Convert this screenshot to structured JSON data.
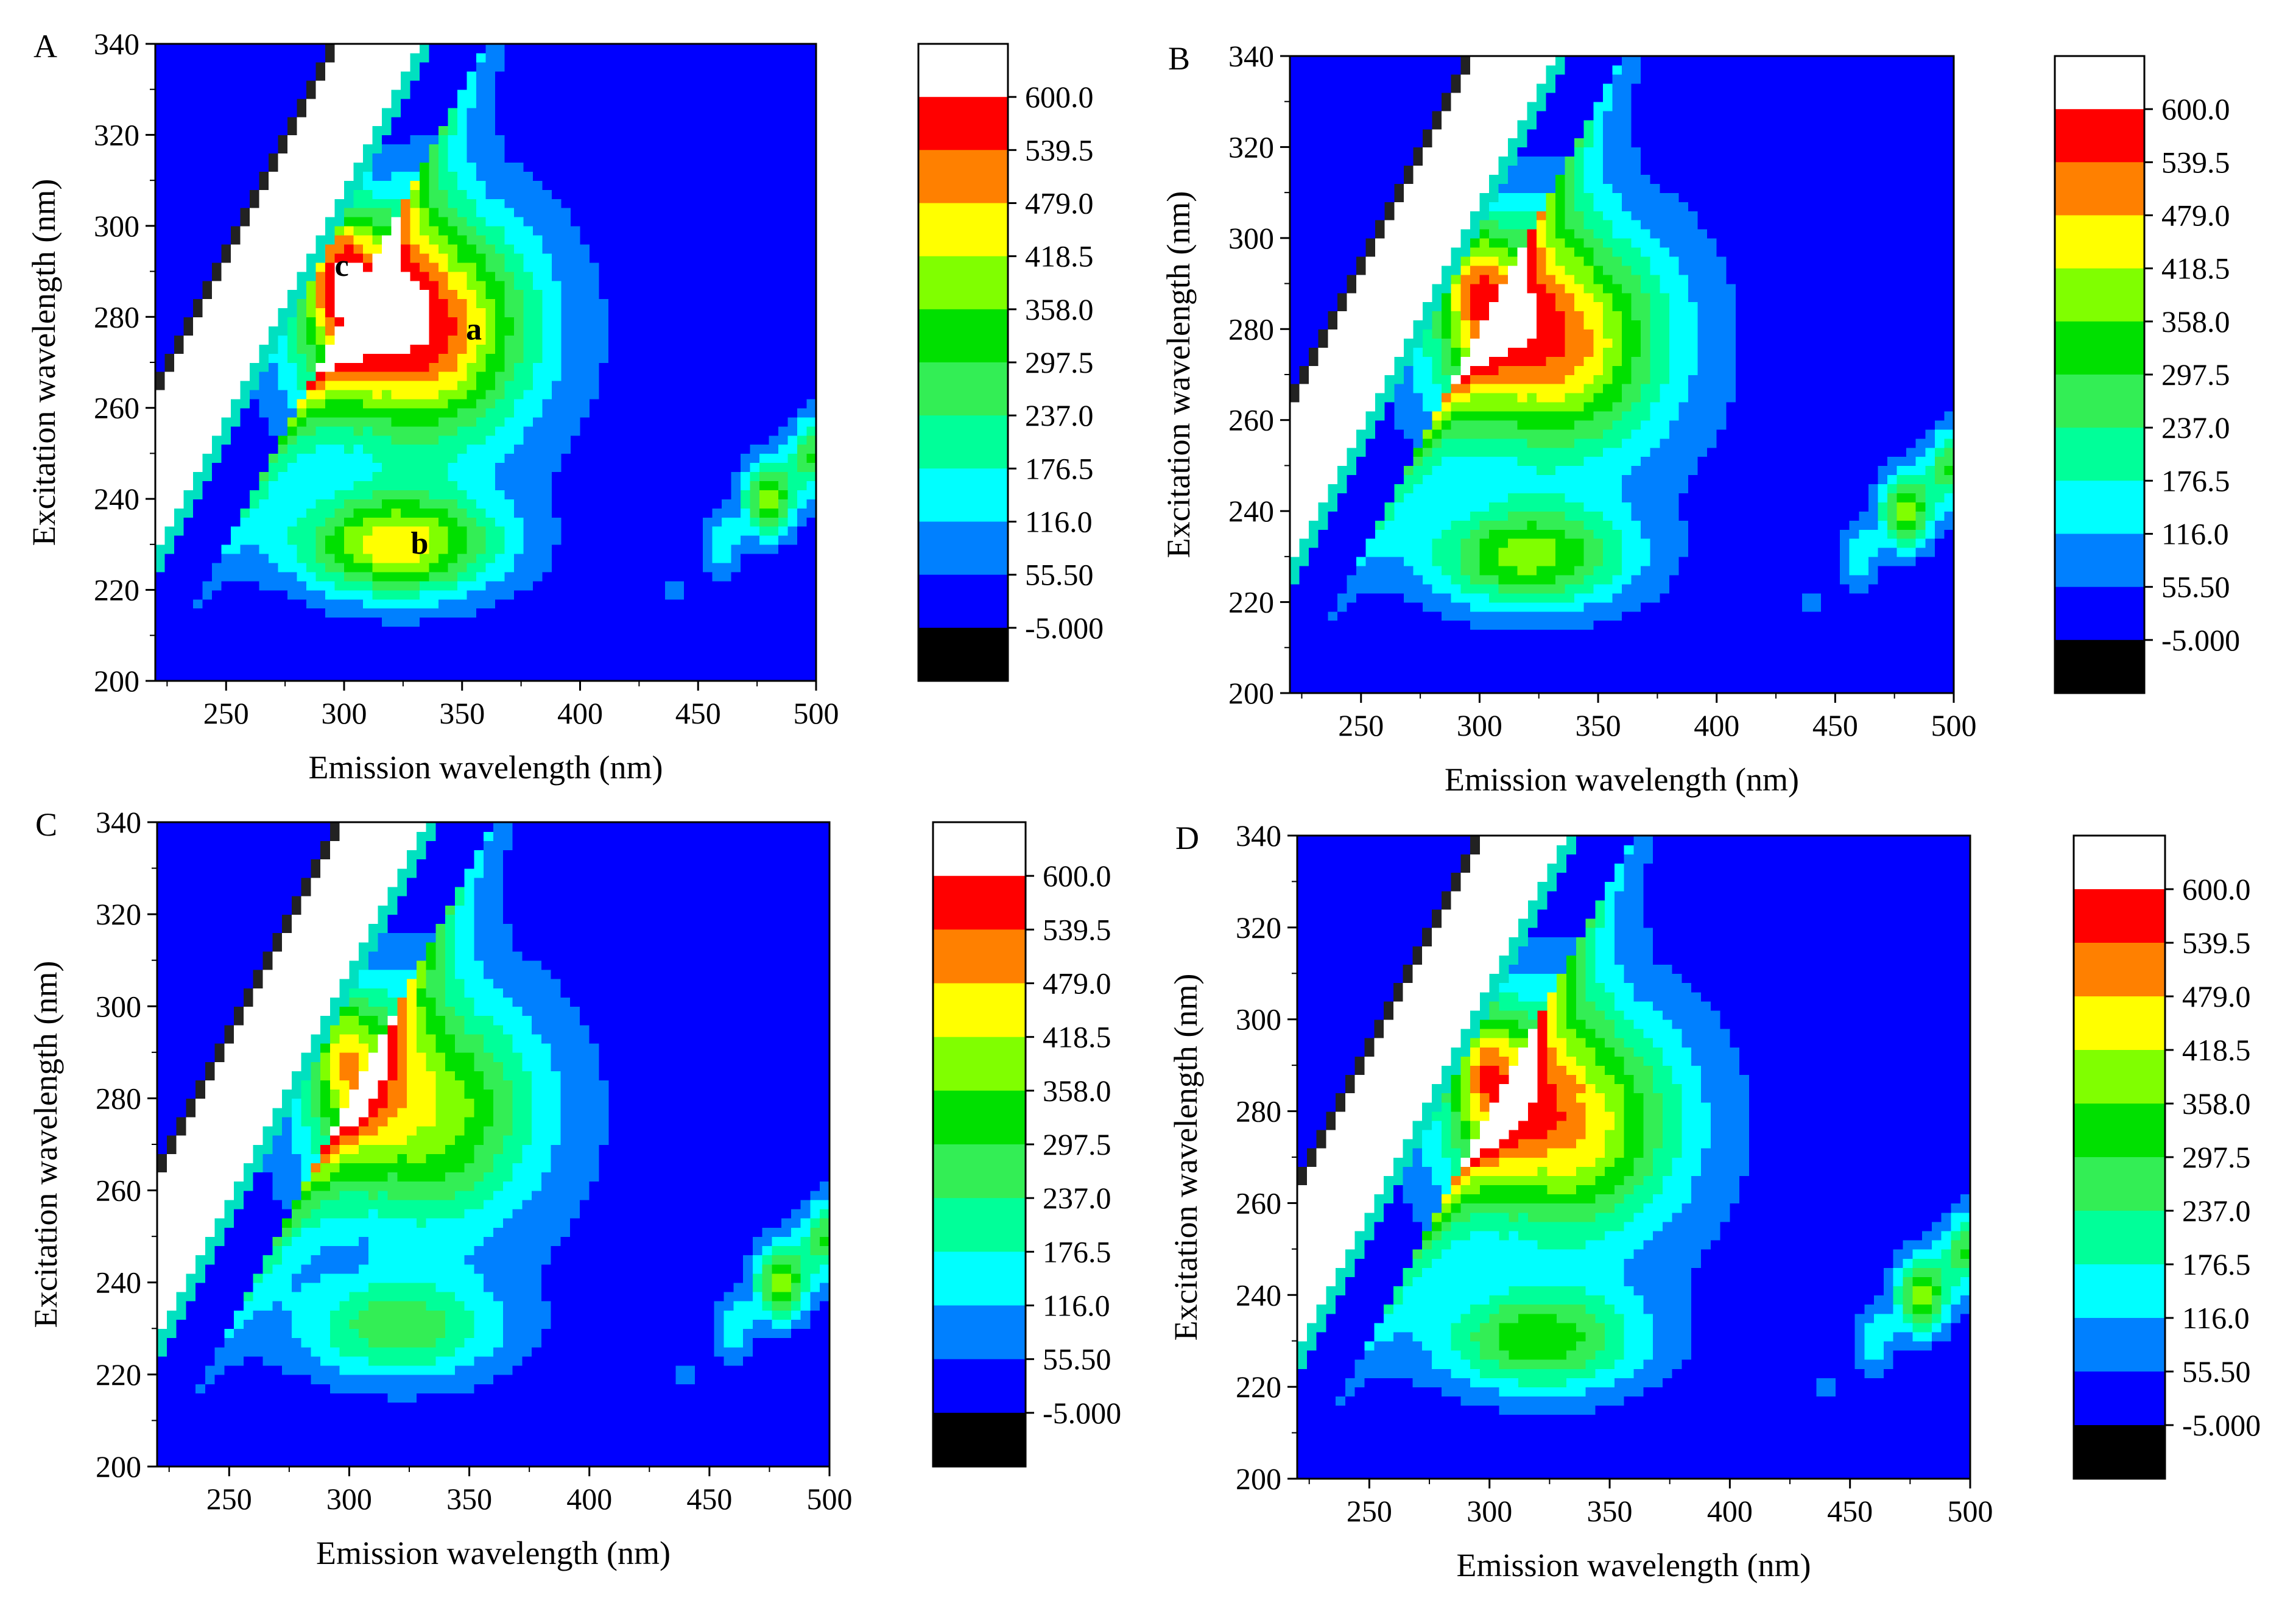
{
  "chart_data": [
    {
      "type": "heatmap",
      "panel_label": "A",
      "xlabel": "Emission wavelength (nm)",
      "ylabel": "Excitation wavelength (nm)",
      "xlim": [
        220,
        500
      ],
      "ylim": [
        200,
        340
      ],
      "x_ticks": [
        "250",
        "300",
        "350",
        "400",
        "450",
        "500"
      ],
      "y_ticks": [
        "200",
        "220",
        "240",
        "260",
        "280",
        "300",
        "320",
        "340"
      ],
      "peak_labels": [
        {
          "text": "a",
          "x": 355,
          "y": 275
        },
        {
          "text": "b",
          "x": 332,
          "y": 228
        },
        {
          "text": "c",
          "x": 299,
          "y": 289
        }
      ],
      "peaks": [
        {
          "x": 328,
          "y": 278,
          "value": 570
        },
        {
          "x": 322,
          "y": 230,
          "value": 440
        },
        {
          "x": 298,
          "y": 290,
          "value": 540
        }
      ],
      "colorbar": {
        "levels": [
          "600.0",
          "539.5",
          "479.0",
          "418.5",
          "358.0",
          "297.5",
          "237.0",
          "176.5",
          "116.0",
          "55.50",
          "-5.000"
        ]
      }
    },
    {
      "type": "heatmap",
      "panel_label": "B",
      "xlabel": "Emission wavelength (nm)",
      "ylabel": "Excitation wavelength (nm)",
      "xlim": [
        220,
        500
      ],
      "ylim": [
        200,
        340
      ],
      "x_ticks": [
        "250",
        "300",
        "350",
        "400",
        "450",
        "500"
      ],
      "y_ticks": [
        "200",
        "220",
        "240",
        "260",
        "280",
        "300",
        "320",
        "340"
      ],
      "peak_labels": [],
      "peaks": [
        {
          "x": 328,
          "y": 278,
          "value": 500
        },
        {
          "x": 320,
          "y": 230,
          "value": 360
        },
        {
          "x": 298,
          "y": 290,
          "value": 440
        }
      ],
      "colorbar": {
        "levels": [
          "600.0",
          "539.5",
          "479.0",
          "418.5",
          "358.0",
          "297.5",
          "237.0",
          "176.5",
          "116.0",
          "55.50",
          "-5.000"
        ]
      }
    },
    {
      "type": "heatmap",
      "panel_label": "C",
      "xlabel": "Emission wavelength (nm)",
      "ylabel": "Excitation wavelength (nm)",
      "xlim": [
        220,
        500
      ],
      "ylim": [
        200,
        340
      ],
      "x_ticks": [
        "250",
        "300",
        "350",
        "400",
        "450",
        "500"
      ],
      "y_ticks": [
        "200",
        "220",
        "240",
        "260",
        "280",
        "300",
        "320",
        "340"
      ],
      "peak_labels": [],
      "peaks": [
        {
          "x": 328,
          "y": 278,
          "value": 380
        },
        {
          "x": 320,
          "y": 230,
          "value": 260
        },
        {
          "x": 298,
          "y": 290,
          "value": 430
        }
      ],
      "colorbar": {
        "levels": [
          "600.0",
          "539.5",
          "479.0",
          "418.5",
          "358.0",
          "297.5",
          "237.0",
          "176.5",
          "116.0",
          "55.50",
          "-5.000"
        ]
      }
    },
    {
      "type": "heatmap",
      "panel_label": "D",
      "xlabel": "Emission wavelength (nm)",
      "ylabel": "Excitation wavelength (nm)",
      "xlim": [
        220,
        500
      ],
      "ylim": [
        200,
        340
      ],
      "x_ticks": [
        "250",
        "300",
        "350",
        "400",
        "450",
        "500"
      ],
      "y_ticks": [
        "200",
        "220",
        "240",
        "260",
        "280",
        "300",
        "320",
        "340"
      ],
      "peak_labels": [],
      "peaks": [
        {
          "x": 328,
          "y": 278,
          "value": 460
        },
        {
          "x": 320,
          "y": 230,
          "value": 320
        },
        {
          "x": 298,
          "y": 290,
          "value": 450
        }
      ],
      "colorbar": {
        "levels": [
          "600.0",
          "539.5",
          "479.0",
          "418.5",
          "358.0",
          "297.5",
          "237.0",
          "176.5",
          "116.0",
          "55.50",
          "-5.000"
        ]
      }
    }
  ],
  "colorbar_colors": [
    "#ffffff",
    "#ff0000",
    "#ff8000",
    "#ffff00",
    "#80ff00",
    "#00e000",
    "#33ee55",
    "#00ff99",
    "#00ffff",
    "#0080ff",
    "#0000ff",
    "#000000"
  ]
}
